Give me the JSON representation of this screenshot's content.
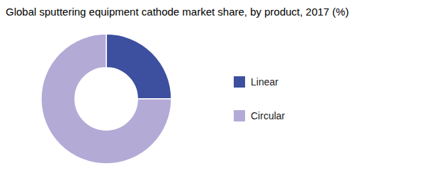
{
  "chart_data": {
    "type": "donut",
    "title": "Global sputtering equipment cathode market share, by product, 2017 (%)",
    "categories": [
      "Linear",
      "Circular"
    ],
    "values": [
      25,
      75
    ],
    "colors": [
      "#3d4f9f",
      "#b3aad6"
    ],
    "legend": "right"
  }
}
